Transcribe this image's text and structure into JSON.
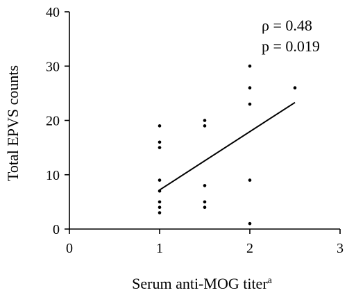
{
  "chart_data": {
    "type": "scatter",
    "xlabel": "Serum anti-MOG titer",
    "xlabel_superscript": "a",
    "ylabel": "Total EPVS counts",
    "xlim": [
      0,
      3
    ],
    "ylim": [
      0,
      40
    ],
    "x_ticks": [
      0,
      1,
      2,
      3
    ],
    "y_ticks": [
      0,
      10,
      20,
      30,
      40
    ],
    "grid": false,
    "points": [
      {
        "x": 1,
        "y": 19
      },
      {
        "x": 1,
        "y": 16
      },
      {
        "x": 1,
        "y": 15
      },
      {
        "x": 1,
        "y": 9
      },
      {
        "x": 1,
        "y": 7
      },
      {
        "x": 1,
        "y": 5
      },
      {
        "x": 1,
        "y": 4
      },
      {
        "x": 1,
        "y": 3
      },
      {
        "x": 1.5,
        "y": 20
      },
      {
        "x": 1.5,
        "y": 19
      },
      {
        "x": 1.5,
        "y": 8
      },
      {
        "x": 1.5,
        "y": 5
      },
      {
        "x": 1.5,
        "y": 4
      },
      {
        "x": 2,
        "y": 30
      },
      {
        "x": 2,
        "y": 26
      },
      {
        "x": 2,
        "y": 23
      },
      {
        "x": 2,
        "y": 9
      },
      {
        "x": 2,
        "y": 1
      },
      {
        "x": 2.5,
        "y": 26
      }
    ],
    "fit_line": {
      "x": [
        1,
        2.5
      ],
      "y": [
        7.2,
        23.3
      ]
    },
    "annotations": {
      "rho": "ρ = 0.48",
      "p": "p = 0.019"
    }
  }
}
